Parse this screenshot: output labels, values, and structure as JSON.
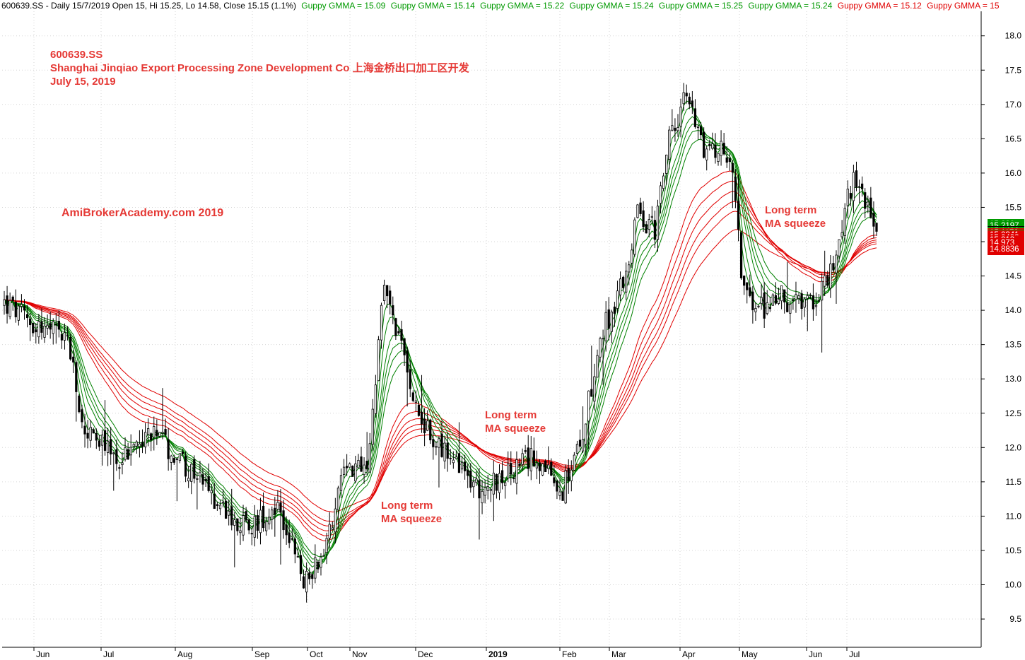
{
  "header": {
    "text": "600639.SS - Daily 15/7/2019 Open 15, Hi 15.25, Lo 14.58, Close 15.15 (1.1%)",
    "gmma": [
      {
        "label": "Guppy GMMA = 15.09",
        "color": "green"
      },
      {
        "label": "Guppy GMMA = 15.14",
        "color": "green"
      },
      {
        "label": "Guppy GMMA = 15.22",
        "color": "green"
      },
      {
        "label": "Guppy GMMA = 15.24",
        "color": "green"
      },
      {
        "label": "Guppy GMMA = 15.25",
        "color": "green"
      },
      {
        "label": "Guppy GMMA = 15.24",
        "color": "green"
      },
      {
        "label": "Guppy GMMA = 15.12",
        "color": "red"
      },
      {
        "label": "Guppy GMMA = 15",
        "color": "red"
      }
    ]
  },
  "title_block": {
    "ticker": "600639.SS",
    "company": "Shanghai Jinqiao Export Processing Zone Development Co  上海金桥出口加工区开发",
    "date": "July 15, 2019"
  },
  "watermark": "AmiBrokerAcademy.com  2019",
  "annotations": [
    {
      "line1": "Long term",
      "line2": "MA squeeze"
    },
    {
      "line1": "Long term",
      "line2": "MA squeeze"
    },
    {
      "line1": "Long term",
      "line2": "MA squeeze"
    }
  ],
  "price_tags": [
    {
      "value": "15.2509",
      "color": "#009900"
    },
    {
      "value": "15.245",
      "color": "#009900"
    },
    {
      "value": "15.238",
      "color": "#009900"
    },
    {
      "value": "15.2197",
      "color": "#009900"
    },
    {
      "value": "15.15",
      "color": "#000000",
      "kind": "close"
    },
    {
      "value": "15.1402",
      "color": "#009900"
    },
    {
      "value": "15.1179",
      "color": "#e00000"
    },
    {
      "value": "15.093",
      "color": "#009900"
    },
    {
      "value": "15.0841",
      "color": "#e00000"
    },
    {
      "value": "15.0498",
      "color": "#e00000"
    },
    {
      "value": "15.013",
      "color": "#e00000"
    },
    {
      "value": "14.973",
      "color": "#e00000"
    },
    {
      "value": "14.8836",
      "color": "#e00000"
    }
  ],
  "chart_data": {
    "type": "candlestick",
    "y_ticks": [
      9.5,
      10.0,
      10.5,
      11.0,
      11.5,
      12.0,
      12.5,
      13.0,
      13.5,
      14.0,
      14.5,
      15.0,
      15.5,
      16.0,
      16.5,
      17.0,
      17.5,
      18.0
    ],
    "ylim": [
      9.0,
      18.3
    ],
    "x_ticks": [
      "Jun",
      "Jul",
      "Aug",
      "Sep",
      "Oct",
      "Nov",
      "Dec",
      "2019",
      "Feb",
      "Mar",
      "Apr",
      "May",
      "Jun",
      "Jul"
    ],
    "bold_x_tick": "2019",
    "gmma_short_color": "#008000",
    "gmma_long_color": "#e00000",
    "price_path_anchors": [
      {
        "bar": 0,
        "close": 14.1
      },
      {
        "bar": 10,
        "close": 13.8
      },
      {
        "bar": 22,
        "close": 13.6
      },
      {
        "bar": 27,
        "close": 12.3
      },
      {
        "bar": 40,
        "close": 11.8
      },
      {
        "bar": 50,
        "close": 12.2
      },
      {
        "bar": 60,
        "close": 11.9
      },
      {
        "bar": 72,
        "close": 11.3
      },
      {
        "bar": 85,
        "close": 10.8
      },
      {
        "bar": 95,
        "close": 11.2
      },
      {
        "bar": 101,
        "close": 10.4
      },
      {
        "bar": 104,
        "close": 10.0
      },
      {
        "bar": 112,
        "close": 10.6
      },
      {
        "bar": 118,
        "close": 11.8
      },
      {
        "bar": 126,
        "close": 11.6
      },
      {
        "bar": 132,
        "close": 14.4
      },
      {
        "bar": 138,
        "close": 13.4
      },
      {
        "bar": 146,
        "close": 12.3
      },
      {
        "bar": 155,
        "close": 11.8
      },
      {
        "bar": 165,
        "close": 11.4
      },
      {
        "bar": 175,
        "close": 11.6
      },
      {
        "bar": 185,
        "close": 11.9
      },
      {
        "bar": 193,
        "close": 11.3
      },
      {
        "bar": 200,
        "close": 12.0
      },
      {
        "bar": 207,
        "close": 13.6
      },
      {
        "bar": 215,
        "close": 14.4
      },
      {
        "bar": 220,
        "close": 15.4
      },
      {
        "bar": 226,
        "close": 15.2
      },
      {
        "bar": 231,
        "close": 16.5
      },
      {
        "bar": 237,
        "close": 17.1
      },
      {
        "bar": 243,
        "close": 16.4
      },
      {
        "bar": 252,
        "close": 16.3
      },
      {
        "bar": 257,
        "close": 14.2
      },
      {
        "bar": 262,
        "close": 14.0
      },
      {
        "bar": 270,
        "close": 14.2
      },
      {
        "bar": 278,
        "close": 14.0
      },
      {
        "bar": 288,
        "close": 14.6
      },
      {
        "bar": 295,
        "close": 16.0
      },
      {
        "bar": 303,
        "close": 15.15
      }
    ]
  }
}
